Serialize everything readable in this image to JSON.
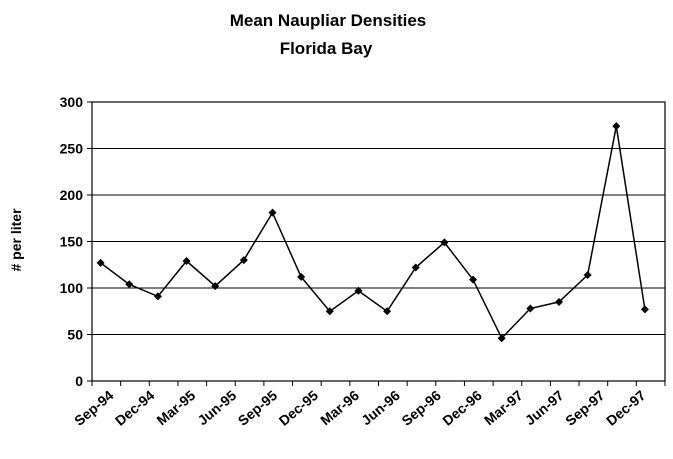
{
  "chart_data": {
    "type": "line",
    "title": "Mean Naupliar Densities",
    "subtitle": "Florida Bay",
    "xlabel": "",
    "ylabel": "# per liter",
    "ylim": [
      0,
      300
    ],
    "yticks": [
      0,
      50,
      100,
      150,
      200,
      250,
      300
    ],
    "grid": "horizontal",
    "x_tick_labels": [
      "Sep-94",
      "Dec-94",
      "Mar-95",
      "Jun-95",
      "Sep-95",
      "Dec-95",
      "Mar-96",
      "Jun-96",
      "Sep-96",
      "Dec-96",
      "Mar-97",
      "Jun-97",
      "Sep-97",
      "Dec-97"
    ],
    "marker": "diamond",
    "series": [
      {
        "values": [
          127,
          104,
          91,
          129,
          102,
          130,
          181,
          112,
          75,
          97,
          75,
          122,
          149,
          109,
          46,
          78,
          85,
          114,
          274,
          77
        ]
      }
    ],
    "colors": {
      "line": "#000000",
      "grid": "#000000",
      "plot_border": "#000000"
    }
  }
}
